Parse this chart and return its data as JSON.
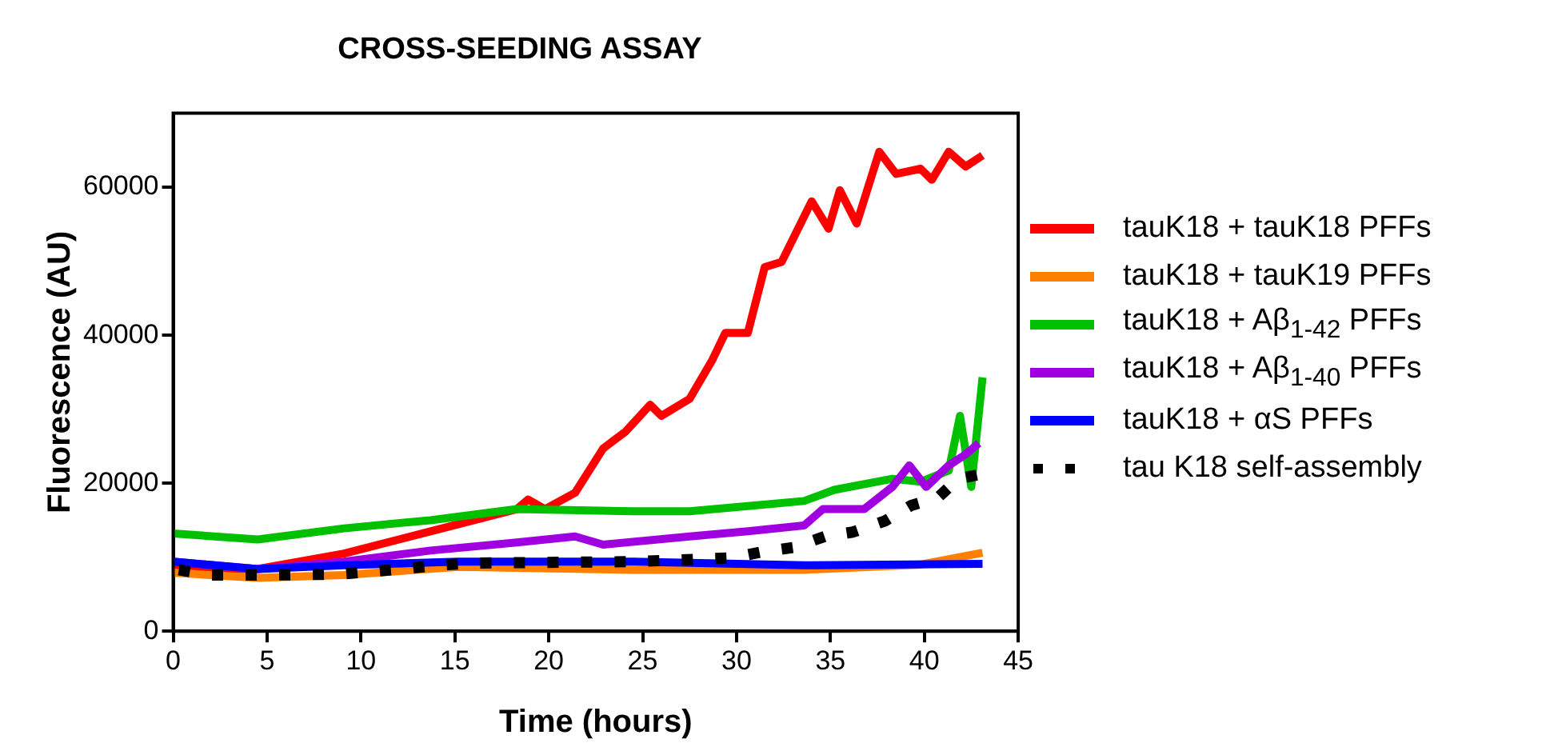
{
  "chart_data": {
    "type": "line",
    "title": "CROSS-SEEDING ASSAY",
    "xlabel": "Time (hours)",
    "ylabel": "Fluorescence (AU)",
    "xlim": [
      0,
      45
    ],
    "xticks": [
      0,
      5,
      10,
      15,
      20,
      25,
      30,
      35,
      40,
      45
    ],
    "ylim": [
      0,
      70000
    ],
    "yticks": [
      0,
      20000,
      40000,
      60000
    ],
    "grid": false,
    "legend": "right",
    "line_style": "solid",
    "series": [
      {
        "name": "tauK18 + tauK18 PFFs",
        "color": "#ff0000",
        "x": [
          0,
          4.5,
          9.1,
          13.7,
          18.3,
          18.9,
          19.8,
          21.4,
          22.9,
          24.1,
          25.4,
          26,
          27.5,
          28.7,
          29.4,
          30.6,
          31.5,
          32.4,
          34,
          34.9,
          35.5,
          36.4,
          37.6,
          38.5,
          39.8,
          40.4,
          41.3,
          42.2,
          43.1
        ],
        "values": [
          8300,
          8400,
          10500,
          13500,
          16500,
          17800,
          16500,
          18700,
          24700,
          27000,
          30600,
          29100,
          31400,
          36600,
          40300,
          40300,
          49200,
          49900,
          58100,
          54400,
          59600,
          55100,
          64800,
          61800,
          62500,
          61000,
          64800,
          62800,
          64300
        ]
      },
      {
        "name": "tauK18 + tauK19 PFFs",
        "color": "#ff8000",
        "x": [
          0,
          4.5,
          9.1,
          15.2,
          24.5,
          33.6,
          39.8,
          43.1
        ],
        "values": [
          7900,
          7200,
          7600,
          8700,
          8300,
          8300,
          9000,
          10600
        ]
      },
      {
        "name": "tauK18 + Aβ$_{1-42}$ PFFs",
        "color": "#00c000",
        "x": [
          0,
          4.5,
          9.1,
          13.7,
          18.3,
          24.5,
          27.5,
          30.6,
          33.6,
          35.2,
          38.3,
          39.8,
          41.3,
          41.9,
          42.5,
          43.1
        ],
        "values": [
          13200,
          12400,
          13900,
          15000,
          16500,
          16200,
          16200,
          16900,
          17600,
          19100,
          20600,
          20200,
          21700,
          29100,
          19500,
          34300
        ]
      },
      {
        "name": "tauK18 + Aβ$_{1-40}$ PFFs",
        "color": "#a000e0",
        "x": [
          0,
          4.5,
          9.1,
          13.7,
          18.3,
          21.4,
          22.9,
          27.5,
          30.6,
          33.6,
          34.6,
          36.8,
          38.3,
          39.2,
          40.1,
          41.3,
          42.2,
          42.9
        ],
        "values": [
          9400,
          8400,
          9400,
          10900,
          12000,
          12800,
          11700,
          12800,
          13500,
          14300,
          16500,
          16500,
          19500,
          22400,
          19500,
          22400,
          23900,
          25400
        ]
      },
      {
        "name": "tauK18 + αS PFFs",
        "color": "#0000ff",
        "x": [
          0,
          4.5,
          9.1,
          15.2,
          24.5,
          33.6,
          43.1
        ],
        "values": [
          9400,
          8400,
          8900,
          9400,
          9400,
          8900,
          9100
        ]
      },
      {
        "name": "tau K18 self-assembly",
        "color": "#000000",
        "line_style": "dotted",
        "x": [
          0.3,
          1.9,
          5.4,
          8.8,
          12.2,
          14,
          15.9,
          24.5,
          29.7,
          31.3,
          33,
          34.7,
          36.2,
          37.9,
          39.3,
          40.7,
          41.8,
          42.8
        ],
        "values": [
          8300,
          7600,
          7600,
          7700,
          8400,
          8900,
          9200,
          9400,
          9900,
          10700,
          11300,
          12800,
          13400,
          14900,
          17000,
          18000,
          20600,
          21100
        ]
      }
    ]
  }
}
